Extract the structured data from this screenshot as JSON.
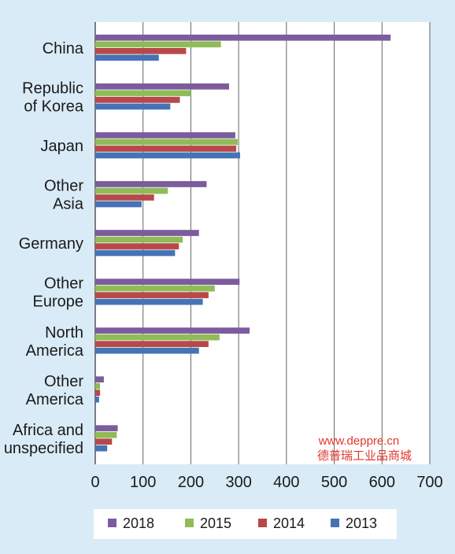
{
  "chart_data": {
    "type": "bar",
    "orientation": "horizontal",
    "categories": [
      "China",
      "Republic\nof Korea",
      "Japan",
      "Other\nAsia",
      "Germany",
      "Other\nEurope",
      "North\nAmerica",
      "Other\nAmerica",
      "Africa and\nunspecified"
    ],
    "series": [
      {
        "name": "2018",
        "color": "#7b5c9d",
        "values": [
          618,
          280,
          293,
          233,
          217,
          302,
          323,
          18,
          47
        ]
      },
      {
        "name": "2015",
        "color": "#8fbb58",
        "values": [
          263,
          200,
          298,
          152,
          183,
          250,
          260,
          10,
          45
        ]
      },
      {
        "name": "2014",
        "color": "#b8484a",
        "values": [
          190,
          177,
          295,
          123,
          175,
          237,
          237,
          10,
          35
        ]
      },
      {
        "name": "2013",
        "color": "#4573b6",
        "values": [
          133,
          157,
          303,
          97,
          167,
          225,
          217,
          8,
          25
        ]
      }
    ],
    "xlim": [
      0,
      700
    ],
    "xticks": [
      0,
      100,
      200,
      300,
      400,
      500,
      600,
      700
    ],
    "grid": true,
    "legend_position": "bottom",
    "title": "",
    "xlabel": "",
    "ylabel": ""
  },
  "watermark": {
    "line1": "www.deppre.cn",
    "line2": "德普瑞工业品商城"
  }
}
